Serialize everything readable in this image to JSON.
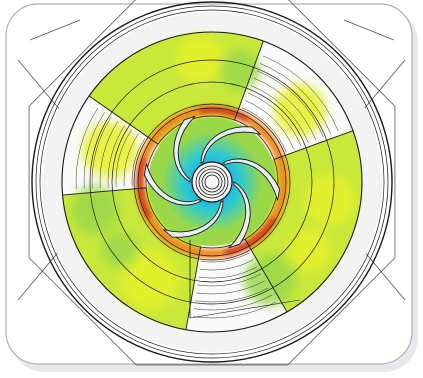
{
  "figure": {
    "icon": "cfd-impeller-contour-icon",
    "colors": {
      "background": "#ffffff",
      "frame_border": "#9a9a9a",
      "shadow": "#cfd6dd",
      "outline": "#1a1a1a",
      "field_low": "#9ad84a",
      "field_mid": "#c8e83a",
      "field_high": "#e6f02a",
      "hot": "#f08a1a",
      "very_hot": "#d83a1a",
      "cool": "#28c9d8",
      "cold": "#1a8ad8",
      "neutral": "#f3f3f3"
    }
  }
}
